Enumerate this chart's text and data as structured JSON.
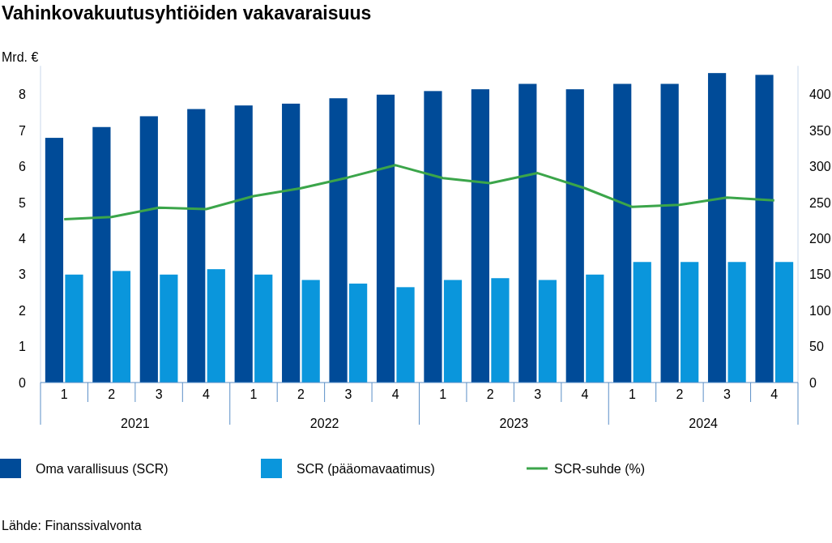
{
  "chart_data": {
    "type": "bar",
    "title": "Vahinkovakuutusyhtiöiden vakavaraisuus",
    "ylabel": "Mrd. €",
    "categories": [
      "1",
      "2",
      "3",
      "4",
      "1",
      "2",
      "3",
      "4",
      "1",
      "2",
      "3",
      "4",
      "1",
      "2",
      "3",
      "4"
    ],
    "series": [
      {
        "name": "Oma varallisuus (SCR)",
        "color": "#004b98",
        "values": [
          6.8,
          7.1,
          7.4,
          7.6,
          7.7,
          7.75,
          7.9,
          8.0,
          8.1,
          8.15,
          8.3,
          8.15,
          8.3,
          8.3,
          8.6,
          8.55
        ]
      },
      {
        "name": "SCR (pääomavaatimus)",
        "color": "#0a96dc",
        "values": [
          3.0,
          3.1,
          3.0,
          3.15,
          3.0,
          2.85,
          2.75,
          2.65,
          2.85,
          2.9,
          2.85,
          3.0,
          3.35,
          3.35,
          3.35,
          3.35
        ]
      },
      {
        "name": "SCR-suhde (%)",
        "type": "line",
        "axis": "y2",
        "color": "#3ba54a",
        "values": [
          227,
          230,
          243,
          241,
          259,
          270,
          285,
          302,
          284,
          277,
          291,
          270,
          244,
          247,
          257,
          253
        ]
      }
    ],
    "ylim": [
      0,
      8.8
    ],
    "yticks": [
      0,
      1,
      2,
      3,
      4,
      5,
      6,
      7,
      8
    ],
    "y2lim": [
      0,
      440
    ],
    "y2ticks": [
      0,
      50,
      100,
      150,
      200,
      250,
      300,
      350,
      400
    ],
    "grid": false,
    "legend": "bottom",
    "marker": "none",
    "line_style": "solid",
    "annotations": [
      "2021",
      "2022",
      "2023",
      "2024",
      "Lähde: Finanssivalvonta"
    ]
  }
}
